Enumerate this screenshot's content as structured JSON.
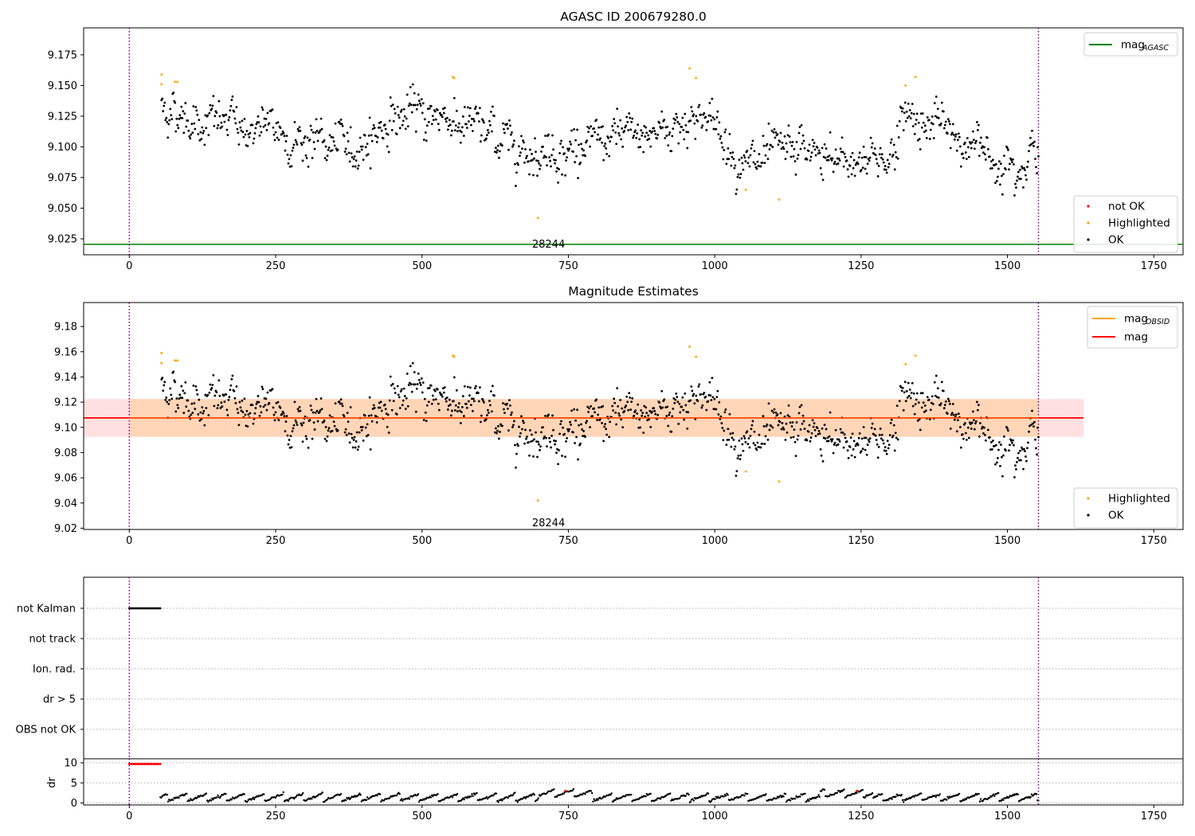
{
  "chart_data": [
    {
      "type": "scatter",
      "title": "AGASC ID 200679280.0",
      "xlim": [
        -78,
        1800
      ],
      "ylim": [
        9.012,
        9.197
      ],
      "xticks": [
        0,
        250,
        500,
        750,
        1000,
        1250,
        1500,
        1750
      ],
      "xtick_labels": [
        "0",
        "250",
        "500",
        "750",
        "1000",
        "1250",
        "1500",
        "1750"
      ],
      "yticks": [
        9.025,
        9.05,
        9.075,
        9.1,
        9.125,
        9.15,
        9.175
      ],
      "ytick_labels": [
        "9.025",
        "9.050",
        "9.075",
        "9.100",
        "9.125",
        "9.150",
        "9.175"
      ],
      "mag_agasc": 9.0205,
      "mag_agasc_color": "#008000",
      "obs_boundaries": [
        0,
        1553
      ],
      "boundary_color": "#800080",
      "annotation": {
        "text": "28244",
        "x": 776,
        "y": 9.0205
      },
      "legend_lines": [
        {
          "label": "mag",
          "sub": "AGASC",
          "color": "#008000"
        }
      ],
      "legend_points": [
        {
          "label": "not OK",
          "color": "#ff0000"
        },
        {
          "label": "Highlighted",
          "color": "#ffa500"
        },
        {
          "label": "OK",
          "color": "#000000"
        }
      ],
      "series": [
        {
          "name": "OK",
          "color": "#000000",
          "x_range": [
            55,
            1553
          ],
          "n": 1100,
          "level": 9.107,
          "trend": [
            [
              55,
              9.133
            ],
            [
              120,
              9.122
            ],
            [
              250,
              9.112
            ],
            [
              380,
              9.097
            ],
            [
              450,
              9.124
            ],
            [
              540,
              9.127
            ],
            [
              600,
              9.112
            ],
            [
              700,
              9.098
            ],
            [
              800,
              9.101
            ],
            [
              900,
              9.112
            ],
            [
              980,
              9.128
            ],
            [
              1060,
              9.082
            ],
            [
              1150,
              9.097
            ],
            [
              1200,
              9.086
            ],
            [
              1300,
              9.094
            ],
            [
              1330,
              9.128
            ],
            [
              1400,
              9.111
            ],
            [
              1480,
              9.091
            ],
            [
              1553,
              9.096
            ]
          ],
          "spread": 0.012
        },
        {
          "name": "Highlighted",
          "color": "#ffa500",
          "points": [
            [
              55,
              9.159
            ],
            [
              55,
              9.151
            ],
            [
              78,
              9.153
            ],
            [
              82,
              9.153
            ],
            [
              553,
              9.157
            ],
            [
              555,
              9.156
            ],
            [
              698,
              9.042
            ],
            [
              957,
              9.164
            ],
            [
              968,
              9.156
            ],
            [
              1053,
              9.065
            ],
            [
              1110,
              9.057
            ],
            [
              1326,
              9.15
            ],
            [
              1343,
              9.157
            ]
          ]
        },
        {
          "name": "not OK",
          "color": "#ff0000",
          "points": []
        }
      ]
    },
    {
      "type": "scatter",
      "title": "Magnitude Estimates",
      "xlim": [
        -78,
        1800
      ],
      "ylim": [
        9.019,
        9.199
      ],
      "xticks": [
        0,
        250,
        500,
        750,
        1000,
        1250,
        1500,
        1750
      ],
      "xtick_labels": [
        "0",
        "250",
        "500",
        "750",
        "1000",
        "1250",
        "1500",
        "1750"
      ],
      "yticks": [
        9.02,
        9.04,
        9.06,
        9.08,
        9.1,
        9.12,
        9.14,
        9.16,
        9.18
      ],
      "ytick_labels": [
        "9.02",
        "9.04",
        "9.06",
        "9.08",
        "9.10",
        "9.12",
        "9.14",
        "9.16",
        "9.18"
      ],
      "mag": 9.1075,
      "mag_band": [
        9.0925,
        9.1225
      ],
      "mag_band_xrange": [
        -78,
        1630
      ],
      "mag_obsid_band": [
        9.0925,
        9.1225
      ],
      "mag_obsid_xrange": [
        0,
        1553
      ],
      "mag_color": "#ff0000",
      "mag_obsid_color": "#ffa500",
      "obs_boundaries": [
        0,
        1553
      ],
      "annotation": {
        "text": "28244",
        "x": 776,
        "y": 9.024
      },
      "legend_lines": [
        {
          "label": "mag",
          "sub": "OBSID",
          "color": "#ffa500"
        },
        {
          "label": "mag",
          "sub": "",
          "color": "#ff0000"
        }
      ],
      "legend_points": [
        {
          "label": "Highlighted",
          "color": "#ffa500"
        },
        {
          "label": "OK",
          "color": "#000000"
        }
      ]
    },
    {
      "type": "scatter",
      "title": "",
      "xlim": [
        -78,
        1800
      ],
      "categories": [
        "not Kalman",
        "not track",
        "Ion. rad.",
        "dr > 5",
        "OBS not OK"
      ],
      "flags": [
        {
          "category": "not Kalman",
          "x_range": [
            0,
            53
          ],
          "count": 40
        }
      ],
      "obs_boundaries": [
        0,
        1553
      ]
    },
    {
      "type": "scatter",
      "title": "",
      "ylabel": "dr",
      "xlim": [
        -78,
        1800
      ],
      "ylim": [
        -0.5,
        11
      ],
      "xticks": [
        0,
        250,
        500,
        750,
        1000,
        1250,
        1500,
        1750
      ],
      "xtick_labels": [
        "0",
        "250",
        "500",
        "750",
        "1000",
        "1250",
        "1500",
        "1750"
      ],
      "yticks": [
        0,
        5,
        10
      ],
      "ytick_labels": [
        "0",
        "5",
        "10"
      ],
      "dr_red_segment": {
        "x_range": [
          0,
          53
        ],
        "value": 9.7
      },
      "dr_red_highlights": [
        [
          745,
          3.0
        ],
        [
          1243,
          3.0
        ]
      ],
      "dr_x_range": [
        53,
        1553
      ],
      "obs_boundaries": [
        0,
        1553
      ]
    }
  ]
}
